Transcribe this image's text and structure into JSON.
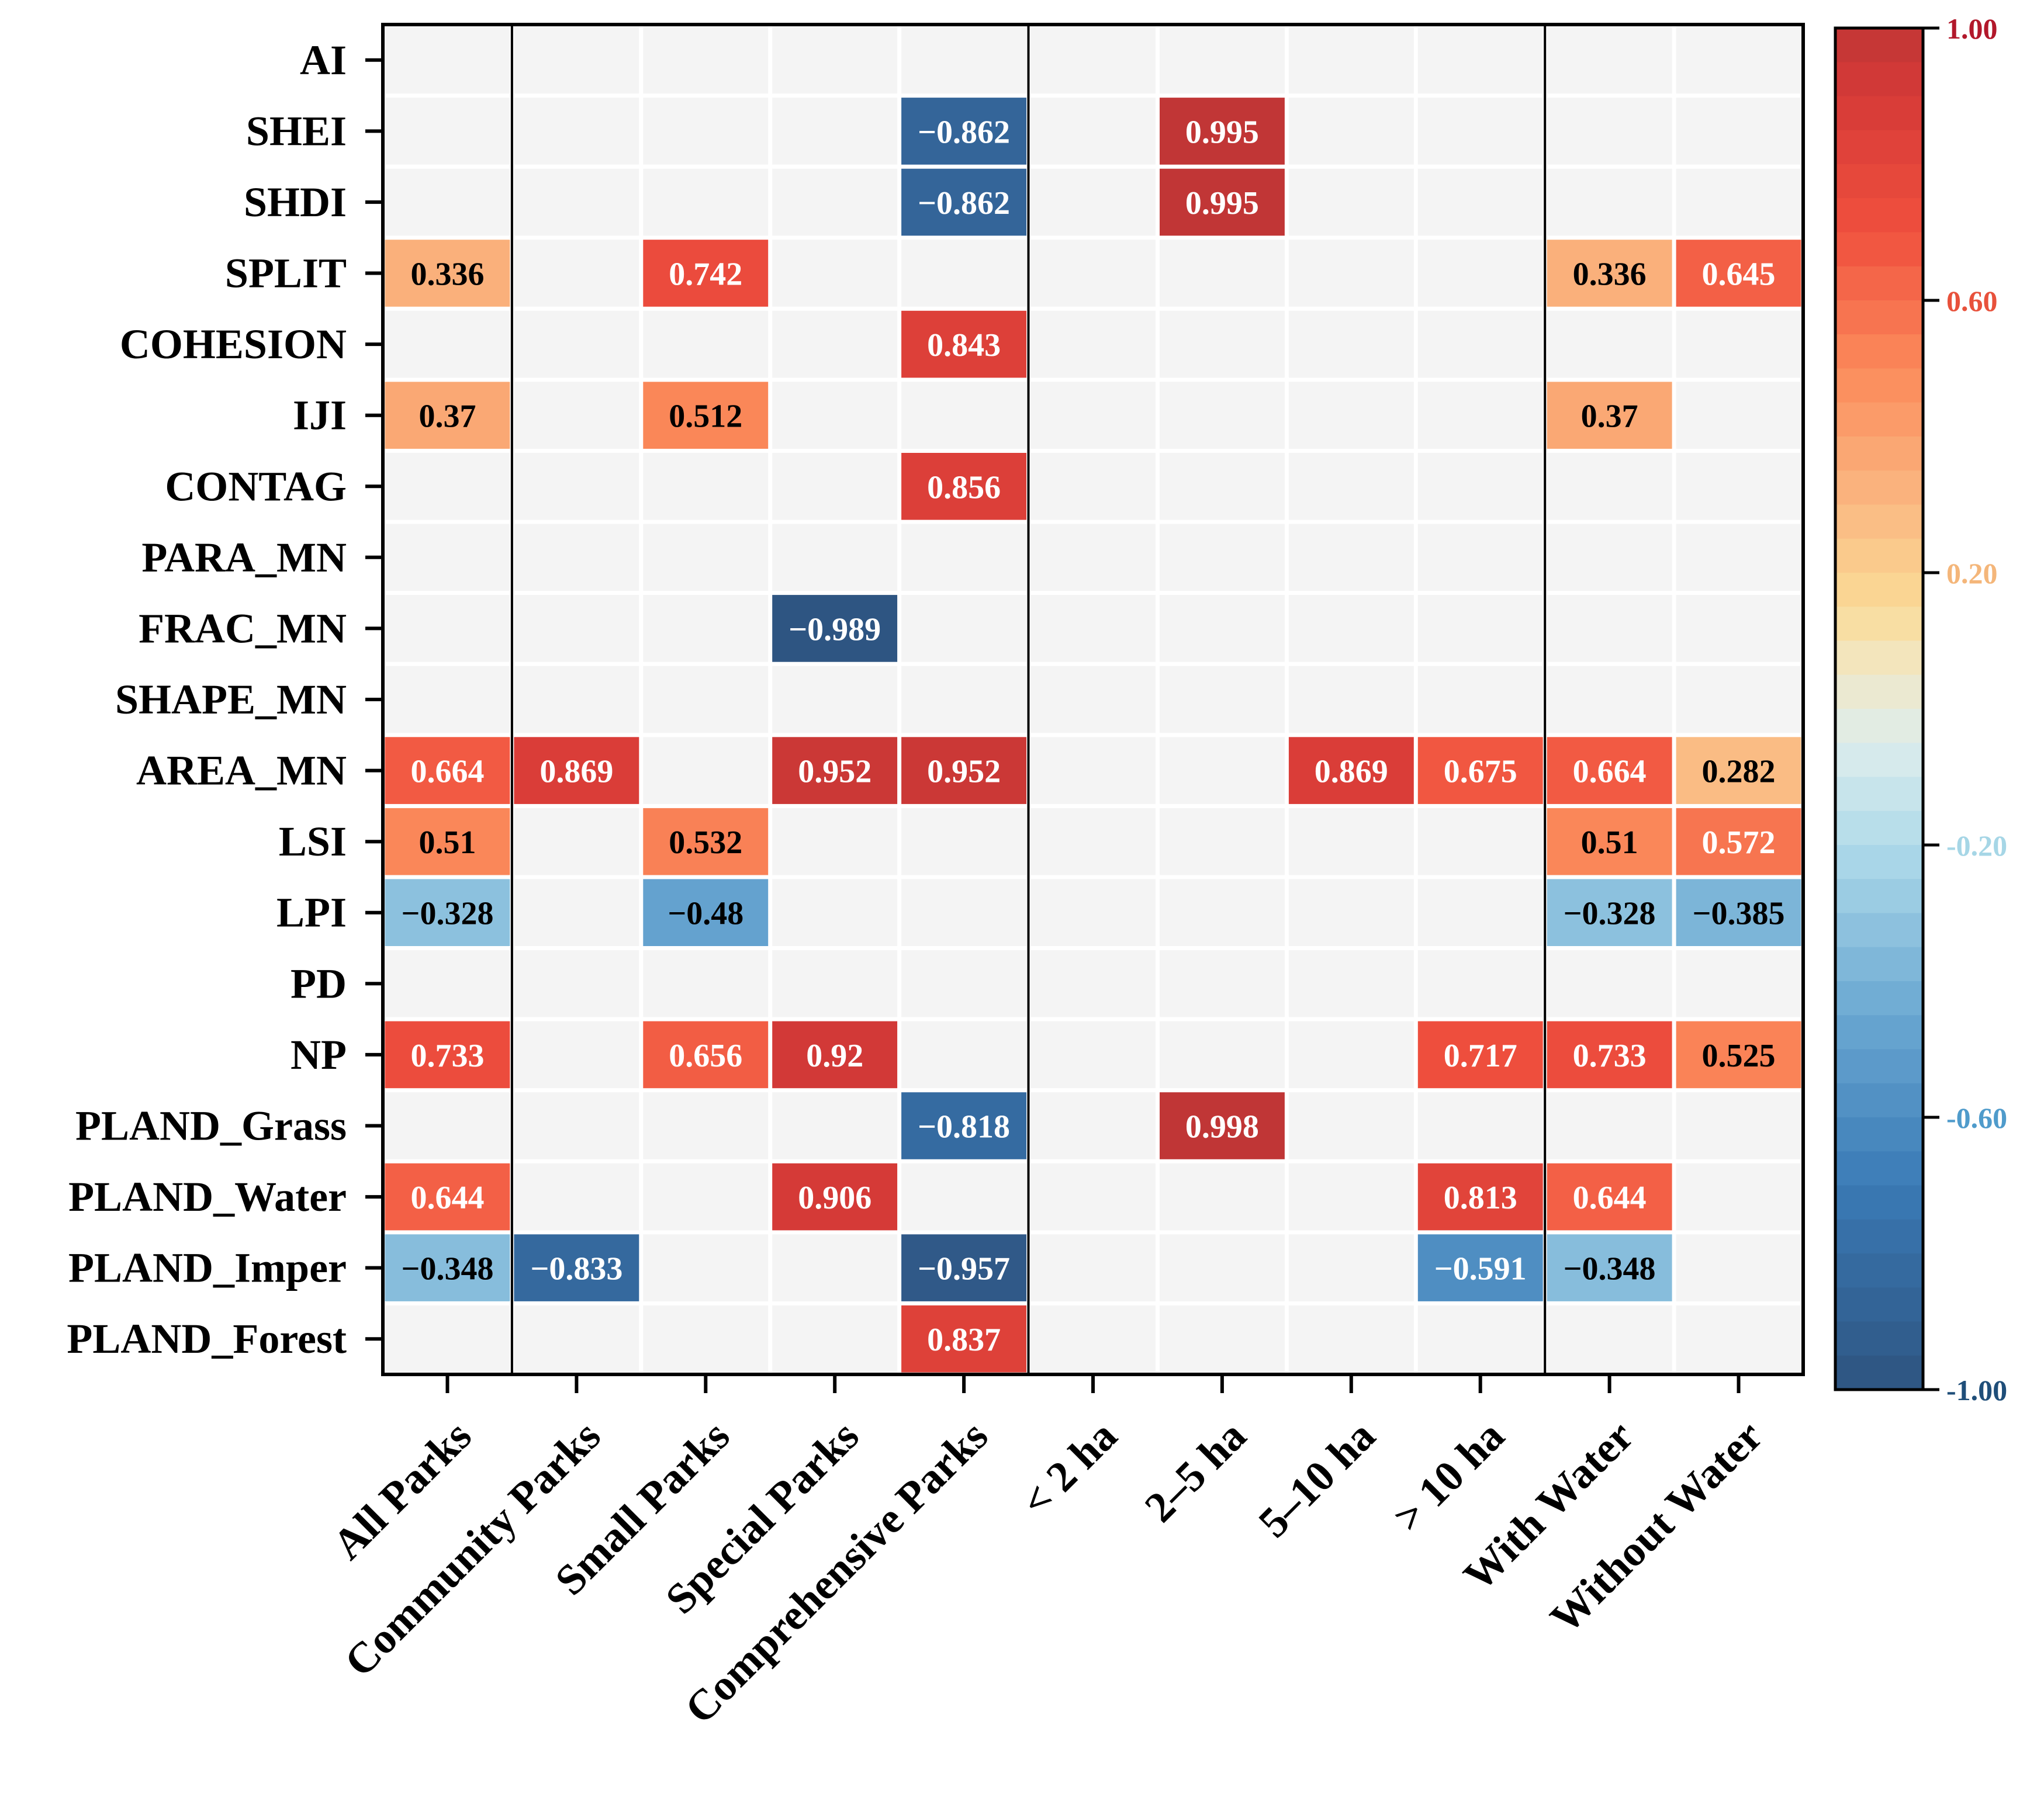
{
  "chart_data": {
    "type": "heatmap",
    "rows": [
      "AI",
      "SHEI",
      "SHDI",
      "SPLIT",
      "COHESION",
      "IJI",
      "CONTAG",
      "PARA_MN",
      "FRAC_MN",
      "SHAPE_MN",
      "AREA_MN",
      "LSI",
      "LPI",
      "PD",
      "NP",
      "PLAND_Grass",
      "PLAND_Water",
      "PLAND_Imper",
      "PLAND_Forest"
    ],
    "columns": [
      "All Parks",
      "Community Parks",
      "Small Parks",
      "Special Parks",
      "Comprehensive Parks",
      "< 2 ha",
      "2–5 ha",
      "5–10 ha",
      "> 10 ha",
      "With Water",
      "Without Water"
    ],
    "values": [
      [
        null,
        null,
        null,
        null,
        null,
        null,
        null,
        null,
        null,
        null,
        null
      ],
      [
        null,
        null,
        null,
        null,
        -0.862,
        null,
        0.995,
        null,
        null,
        null,
        null
      ],
      [
        null,
        null,
        null,
        null,
        -0.862,
        null,
        0.995,
        null,
        null,
        null,
        null
      ],
      [
        0.336,
        null,
        0.742,
        null,
        null,
        null,
        null,
        null,
        null,
        0.336,
        0.645
      ],
      [
        null,
        null,
        null,
        null,
        0.843,
        null,
        null,
        null,
        null,
        null,
        null
      ],
      [
        0.37,
        null,
        0.512,
        null,
        null,
        null,
        null,
        null,
        null,
        0.37,
        null
      ],
      [
        null,
        null,
        null,
        null,
        0.856,
        null,
        null,
        null,
        null,
        null,
        null
      ],
      [
        null,
        null,
        null,
        null,
        null,
        null,
        null,
        null,
        null,
        null,
        null
      ],
      [
        null,
        null,
        null,
        -0.989,
        null,
        null,
        null,
        null,
        null,
        null,
        null
      ],
      [
        null,
        null,
        null,
        null,
        null,
        null,
        null,
        null,
        null,
        null,
        null
      ],
      [
        0.664,
        0.869,
        null,
        0.952,
        0.952,
        null,
        null,
        0.869,
        0.675,
        0.664,
        0.282
      ],
      [
        0.51,
        null,
        0.532,
        null,
        null,
        null,
        null,
        null,
        null,
        0.51,
        0.572
      ],
      [
        -0.328,
        null,
        -0.48,
        null,
        null,
        null,
        null,
        null,
        null,
        -0.328,
        -0.385
      ],
      [
        null,
        null,
        null,
        null,
        null,
        null,
        null,
        null,
        null,
        null,
        null
      ],
      [
        0.733,
        null,
        0.656,
        0.92,
        null,
        null,
        null,
        null,
        0.717,
        0.733,
        0.525
      ],
      [
        null,
        null,
        null,
        null,
        -0.818,
        null,
        0.998,
        null,
        null,
        null,
        null
      ],
      [
        0.644,
        null,
        null,
        0.906,
        null,
        null,
        null,
        null,
        0.813,
        0.644,
        null
      ],
      [
        -0.348,
        -0.833,
        null,
        null,
        -0.957,
        null,
        null,
        null,
        -0.591,
        -0.348,
        null
      ],
      [
        null,
        null,
        null,
        null,
        0.837,
        null,
        null,
        null,
        null,
        null,
        null
      ]
    ],
    "group_separators_after_column": [
      0,
      4,
      8
    ],
    "colorbar": {
      "range": [
        -1.0,
        1.0
      ],
      "ticks": [
        "1.00",
        "0.60",
        "0.20",
        "-0.20",
        "-0.60",
        "-1.00"
      ],
      "tick_colors": [
        "#b2182b",
        "#e8513b",
        "#f4b67a",
        "#a6d6e6",
        "#4f9bcb",
        "#1f4e79"
      ]
    },
    "empty_cell_color": "#f4f4f4",
    "grid": false,
    "legend": "right"
  }
}
